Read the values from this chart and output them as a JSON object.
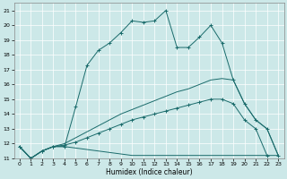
{
  "title": "",
  "xlabel": "Humidex (Indice chaleur)",
  "bg_color": "#cce8e8",
  "line_color": "#1a6b6b",
  "grid_color": "#ffffff",
  "ylim": [
    11,
    21.5
  ],
  "xlim": [
    -0.5,
    23.5
  ],
  "yticks": [
    11,
    12,
    13,
    14,
    15,
    16,
    17,
    18,
    19,
    20,
    21
  ],
  "xticks": [
    0,
    1,
    2,
    3,
    4,
    5,
    6,
    7,
    8,
    9,
    10,
    11,
    12,
    13,
    14,
    15,
    16,
    17,
    18,
    19,
    20,
    21,
    22,
    23
  ],
  "series": [
    {
      "x": [
        0,
        1,
        2,
        3,
        4,
        5,
        6,
        7,
        8,
        9,
        10,
        11,
        12,
        13,
        14,
        15,
        16,
        17,
        18,
        19,
        20,
        21,
        22,
        23
      ],
      "y": [
        11.8,
        11.0,
        11.5,
        11.8,
        11.8,
        14.5,
        17.3,
        18.3,
        18.8,
        19.5,
        20.3,
        20.2,
        20.3,
        21.0,
        18.5,
        18.5,
        19.2,
        20.0,
        18.8,
        16.3,
        14.7,
        13.6,
        13.0,
        11.2
      ],
      "marker": "+"
    },
    {
      "x": [
        0,
        1,
        2,
        3,
        4,
        5,
        6,
        7,
        8,
        9,
        10,
        11,
        12,
        13,
        14,
        15,
        16,
        17,
        18,
        19,
        20,
        21,
        22,
        23
      ],
      "y": [
        11.8,
        11.0,
        11.5,
        11.8,
        11.8,
        11.7,
        11.6,
        11.5,
        11.4,
        11.3,
        11.2,
        11.2,
        11.2,
        11.2,
        11.2,
        11.2,
        11.2,
        11.2,
        11.2,
        11.2,
        11.2,
        11.2,
        11.2,
        11.2
      ],
      "marker": null
    },
    {
      "x": [
        0,
        1,
        2,
        3,
        4,
        5,
        6,
        7,
        8,
        9,
        10,
        11,
        12,
        13,
        14,
        15,
        16,
        17,
        18,
        19,
        20,
        21,
        22,
        23
      ],
      "y": [
        11.8,
        11.0,
        11.5,
        11.8,
        11.9,
        12.1,
        12.4,
        12.7,
        13.0,
        13.3,
        13.6,
        13.8,
        14.0,
        14.2,
        14.4,
        14.6,
        14.8,
        15.0,
        15.0,
        14.7,
        13.6,
        13.0,
        11.2,
        null
      ],
      "marker": "+"
    },
    {
      "x": [
        0,
        1,
        2,
        3,
        4,
        5,
        6,
        7,
        8,
        9,
        10,
        11,
        12,
        13,
        14,
        15,
        16,
        17,
        18,
        19,
        20,
        21,
        22,
        23
      ],
      "y": [
        11.8,
        11.0,
        11.5,
        11.8,
        12.0,
        12.4,
        12.8,
        13.2,
        13.6,
        14.0,
        14.3,
        14.6,
        14.9,
        15.2,
        15.5,
        15.7,
        16.0,
        16.3,
        16.4,
        16.3,
        14.7,
        13.6,
        13.0,
        11.2
      ],
      "marker": null
    }
  ]
}
